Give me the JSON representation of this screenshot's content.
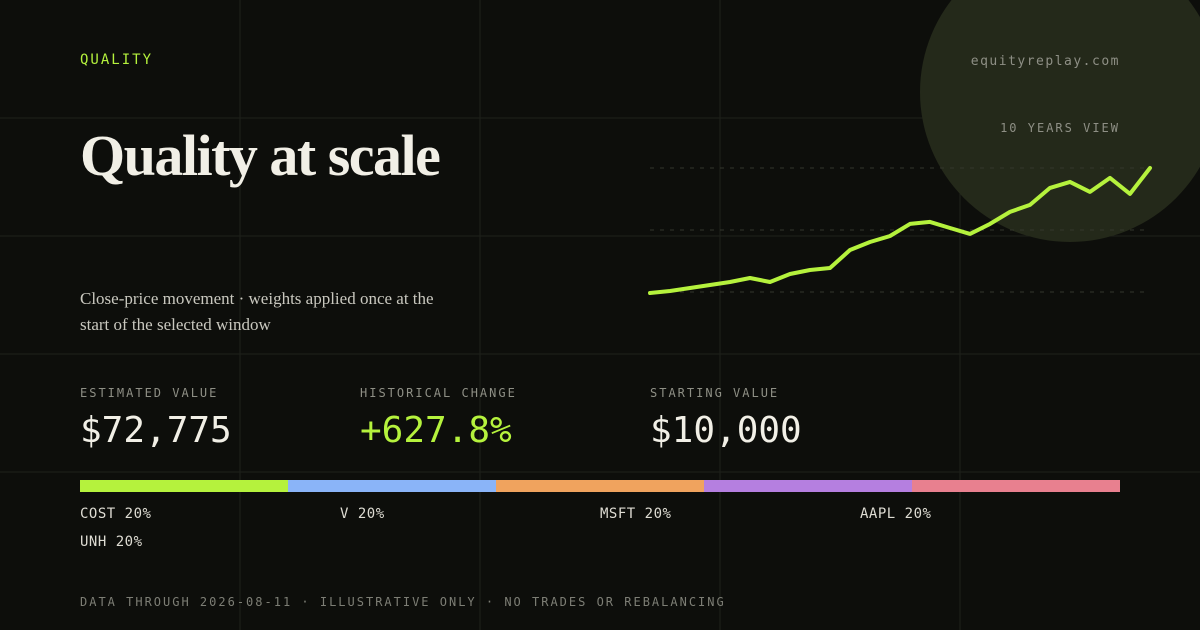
{
  "tag": "QUALITY",
  "site": "equityreplay.com",
  "title": "Quality at scale",
  "subtitle": "Close-price movement · weights applied once at the start of the selected window",
  "sparkline": {
    "label": "10 YEARS VIEW",
    "log_scale": true,
    "color": "#b5f23d",
    "values": [
      10000,
      10323,
      10826,
      11355,
      11909,
      12690,
      11909,
      13525,
      14411,
      14876,
      19803,
      22480,
      24740,
      29940,
      30905,
      28090,
      25540,
      29940,
      36220,
      40480,
      53030,
      58330,
      49780,
      62170,
      48220,
      72775
    ]
  },
  "stats": [
    {
      "label": "ESTIMATED VALUE",
      "value": "$72,775"
    },
    {
      "label": "HISTORICAL CHANGE",
      "value": "+627.8%"
    },
    {
      "label": "STARTING VALUE",
      "value": "$10,000"
    }
  ],
  "allocation": [
    {
      "name": "COST",
      "weight": 20,
      "weight_label": "20%",
      "color": "#b5f23d"
    },
    {
      "name": "V",
      "weight": 20,
      "weight_label": "20%",
      "color": "#8ab4f8"
    },
    {
      "name": "MSFT",
      "weight": 20,
      "weight_label": "20%",
      "color": "#f0a35e"
    },
    {
      "name": "AAPL",
      "weight": 20,
      "weight_label": "20%",
      "color": "#b57fe0"
    },
    {
      "name": "UNH",
      "weight": 20,
      "weight_label": "20%",
      "color": "#e8808f"
    }
  ],
  "footer": "DATA THROUGH 2026-08-11 · ILLUSTRATIVE ONLY · NO TRADES OR REBALANCING"
}
